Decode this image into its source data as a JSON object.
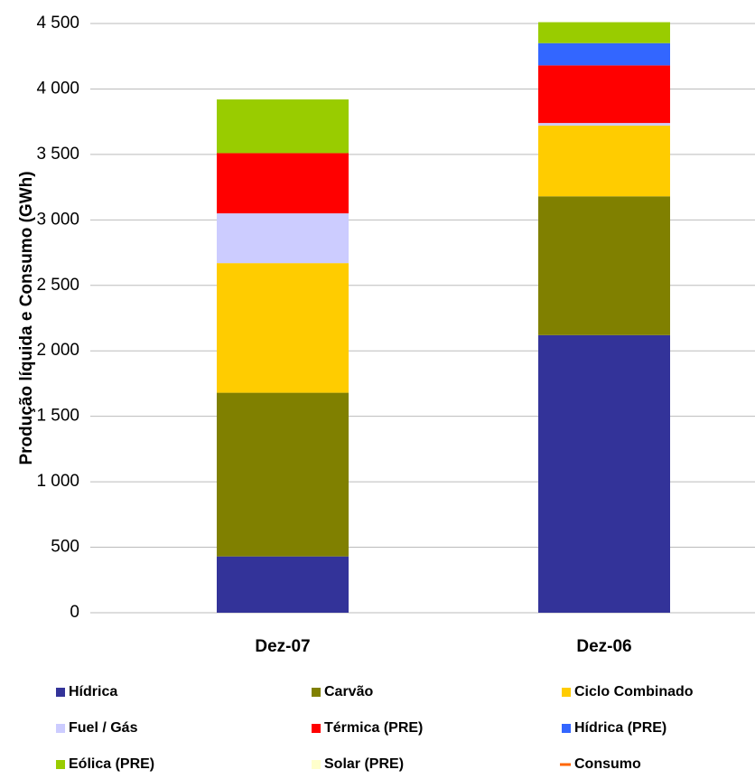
{
  "chart_data": {
    "type": "stacked_bar",
    "y_label": "Produção líquida e Consumo (GWh)",
    "categories": [
      "Dez-07",
      "Dez-06"
    ],
    "series": [
      {
        "name": "Hídrica",
        "color": "#333399",
        "values": [
          430,
          2120
        ]
      },
      {
        "name": "Carvão",
        "color": "#808000",
        "values": [
          1250,
          1060
        ]
      },
      {
        "name": "Ciclo Combinado",
        "color": "#ffcc00",
        "values": [
          990,
          540
        ]
      },
      {
        "name": "Fuel / Gás",
        "color": "#ccccff",
        "values": [
          380,
          20
        ]
      },
      {
        "name": "Térmica (PRE)",
        "color": "#ff0000",
        "values": [
          460,
          440
        ]
      },
      {
        "name": "Hídrica (PRE)",
        "color": "#3366ff",
        "values": [
          0,
          170
        ]
      },
      {
        "name": "Eólica (PRE)",
        "color": "#99cc00",
        "values": [
          410,
          160
        ]
      },
      {
        "name": "Solar (PRE)",
        "color": "#ffffcc",
        "values": [
          0,
          0
        ]
      },
      {
        "name": "Consumo",
        "color": "#ff6600",
        "type": "line",
        "values": [
          null,
          null
        ]
      }
    ],
    "ylim": [
      0,
      4500
    ],
    "yticks": [
      0,
      500,
      {
        "value": 1000,
        "label": "1 000"
      },
      {
        "value": 1500,
        "label": "1 500"
      },
      {
        "value": 2000,
        "label": "2 000"
      },
      {
        "value": 2500,
        "label": "2 500"
      },
      {
        "value": 3000,
        "label": "3 000"
      },
      {
        "value": 3500,
        "label": "3 500"
      },
      {
        "value": 4000,
        "label": "4 000"
      },
      {
        "value": 4500,
        "label": "4 500"
      }
    ],
    "grid": true
  }
}
